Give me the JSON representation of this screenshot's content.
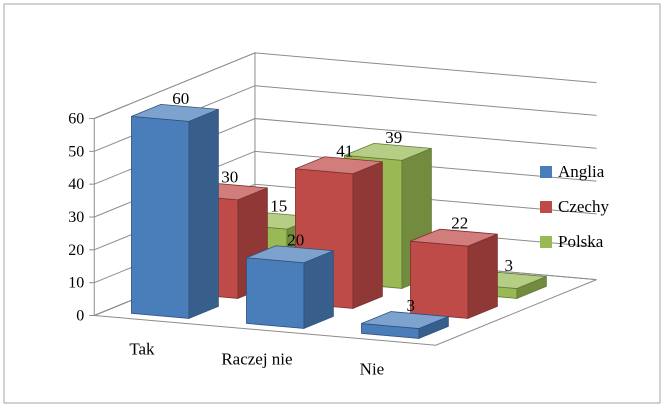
{
  "chart_data": {
    "type": "bar",
    "title": "",
    "xlabel": "",
    "ylabel": "",
    "ylim": [
      0,
      60
    ],
    "yticks": [
      0,
      10,
      20,
      30,
      40,
      50,
      60
    ],
    "categories": [
      "Tak",
      "Raczej nie",
      "Nie"
    ],
    "series": [
      {
        "name": "Anglia",
        "values": [
          60,
          20,
          3
        ],
        "color": "#4a7ebb"
      },
      {
        "name": "Czechy",
        "values": [
          30,
          41,
          22
        ],
        "color": "#be4b48"
      },
      {
        "name": "Polska",
        "values": [
          15,
          39,
          3
        ],
        "color": "#98b954"
      }
    ],
    "legend_position": "right",
    "grid": true,
    "style": "3d-clustered-column"
  }
}
